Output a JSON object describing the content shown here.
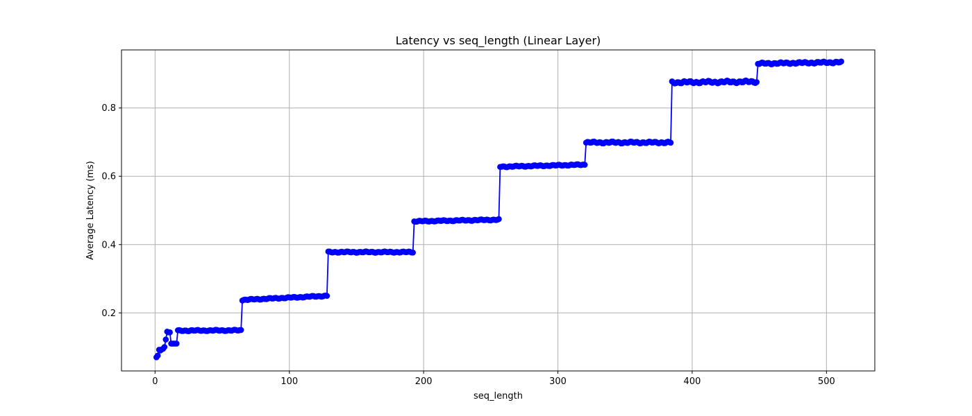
{
  "chart_data": {
    "type": "line",
    "title": "Latency vs seq_length (Linear Layer)",
    "xlabel": "seq_length",
    "ylabel": "Average Latency (ms)",
    "xlim": [
      -25,
      536
    ],
    "ylim": [
      0.03,
      0.97
    ],
    "xticks": [
      0,
      100,
      200,
      300,
      400,
      500
    ],
    "yticks": [
      0.2,
      0.4,
      0.6,
      0.8
    ],
    "xtick_labels": [
      "0",
      "100",
      "200",
      "300",
      "400",
      "500"
    ],
    "ytick_labels": [
      "0.2",
      "0.4",
      "0.6",
      "0.8"
    ],
    "grid": true,
    "series": [
      {
        "color": "#0000ff",
        "marker": "circle",
        "segments": [
          {
            "x_start": 1,
            "x_end": 16,
            "values": [
              0.07,
              0.075,
              0.092,
              0.09,
              0.093,
              0.095,
              0.1,
              0.122,
              0.145,
              0.143,
              0.143,
              0.11,
              0.11,
              0.11,
              0.11,
              0.11
            ]
          },
          {
            "x_start": 17,
            "x_end": 64,
            "level_start": 0.148,
            "level_end": 0.149,
            "noise": 0.002
          },
          {
            "x_start": 65,
            "x_end": 128,
            "level_start": 0.238,
            "level_end": 0.25,
            "noise": 0.002
          },
          {
            "x_start": 129,
            "x_end": 192,
            "level_start": 0.378,
            "level_end": 0.378,
            "noise": 0.002
          },
          {
            "x_start": 193,
            "x_end": 256,
            "level_start": 0.468,
            "level_end": 0.473,
            "noise": 0.002
          },
          {
            "x_start": 257,
            "x_end": 320,
            "level_start": 0.628,
            "level_end": 0.634,
            "noise": 0.002
          },
          {
            "x_start": 321,
            "x_end": 384,
            "level_start": 0.699,
            "level_end": 0.699,
            "noise": 0.003
          },
          {
            "x_start": 385,
            "x_end": 448,
            "level_start": 0.875,
            "level_end": 0.877,
            "noise": 0.004
          },
          {
            "x_start": 449,
            "x_end": 511,
            "level_start": 0.93,
            "level_end": 0.934,
            "noise": 0.003
          }
        ]
      }
    ]
  }
}
